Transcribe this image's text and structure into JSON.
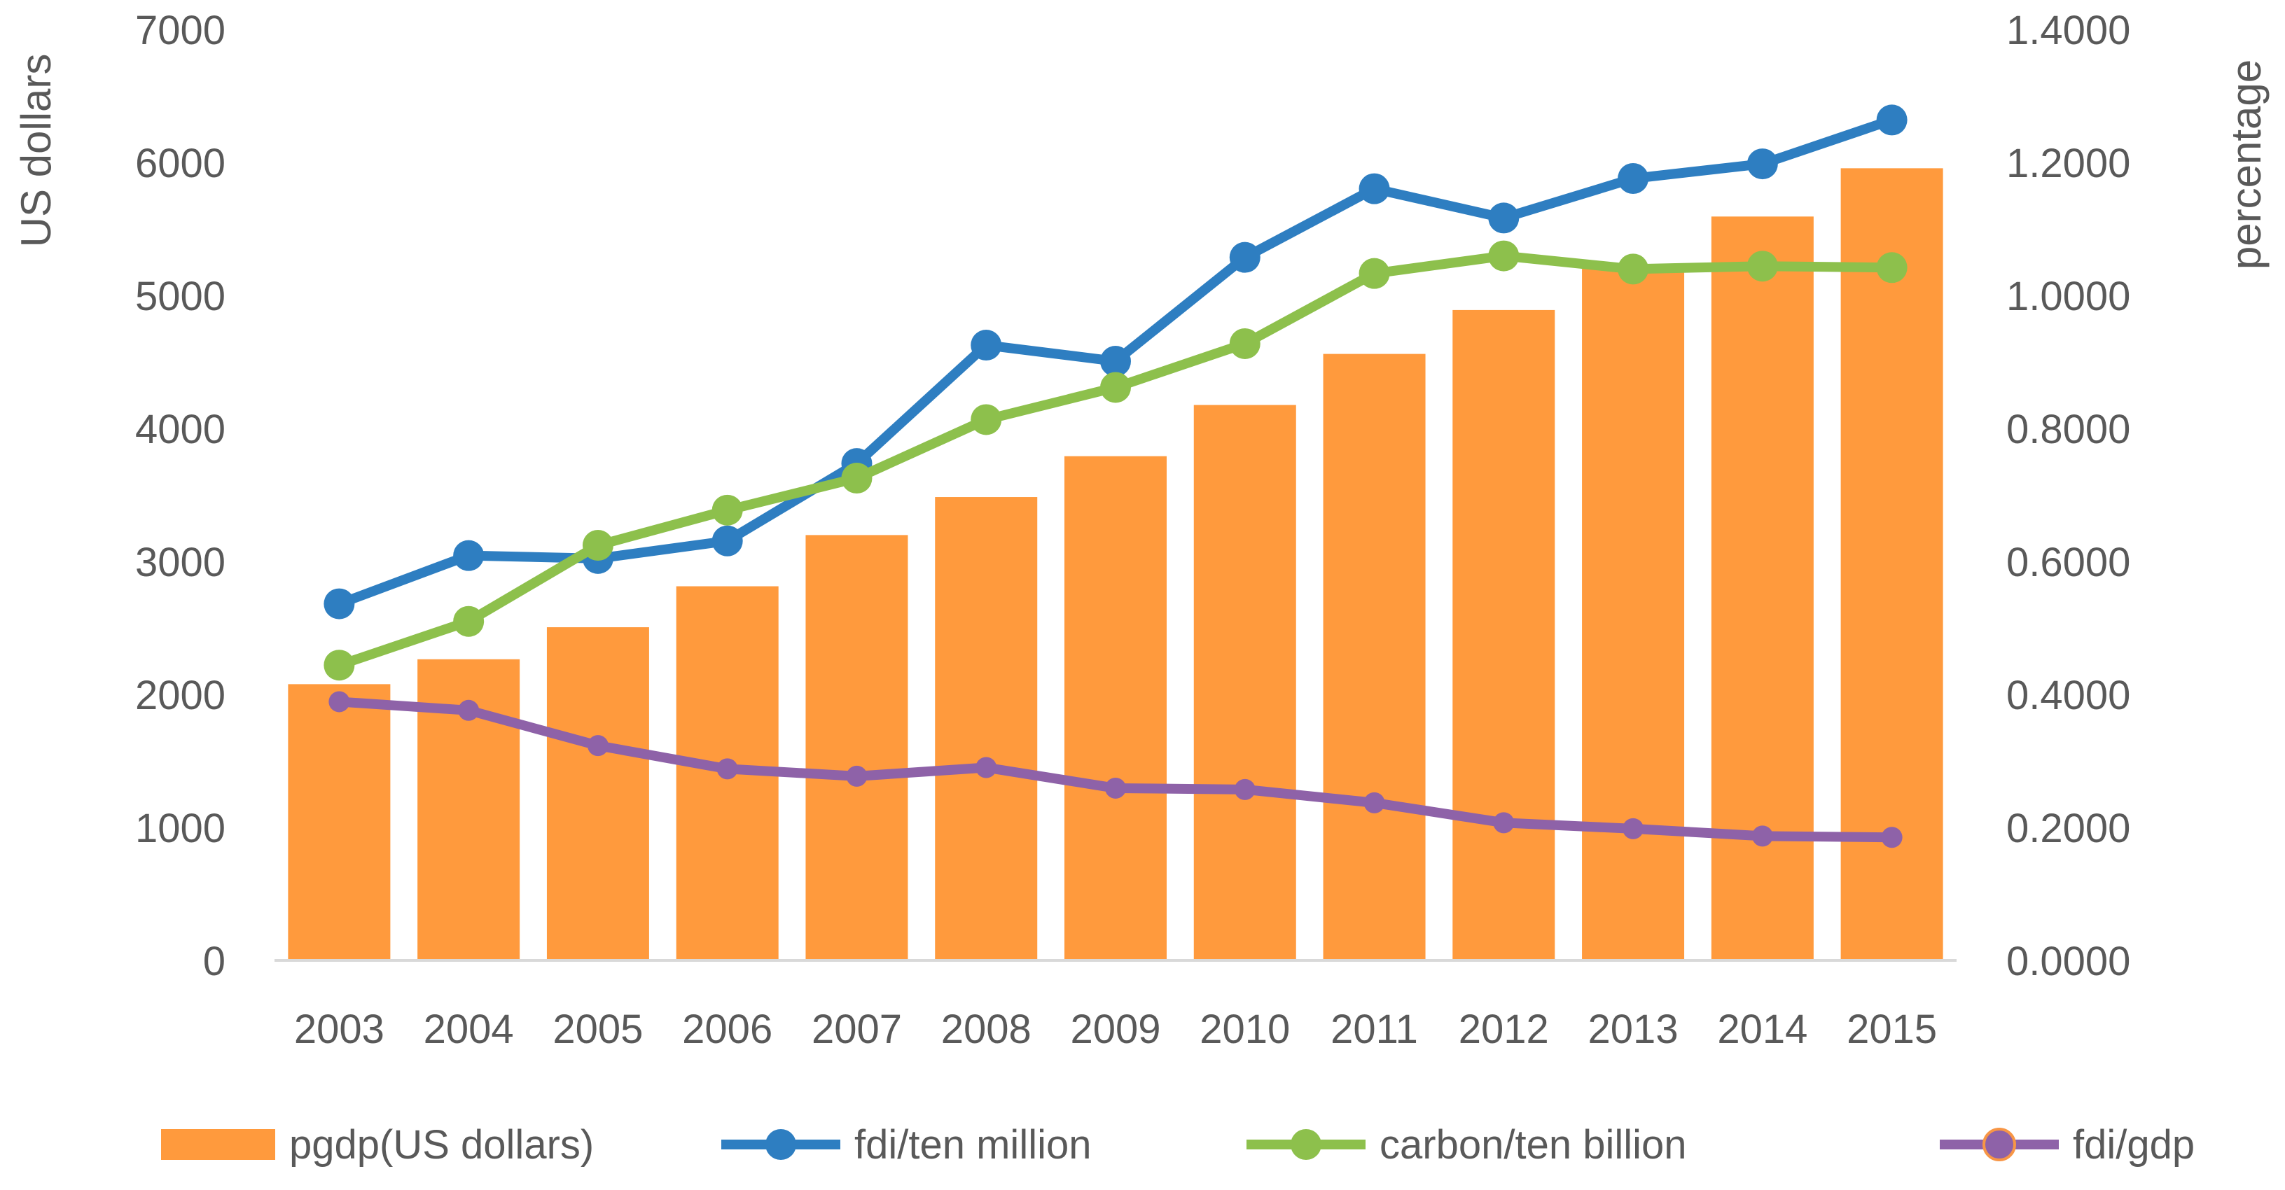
{
  "chart_data": {
    "type": "bar+line",
    "title": "",
    "categories": [
      "2003",
      "2004",
      "2005",
      "2006",
      "2007",
      "2008",
      "2009",
      "2010",
      "2011",
      "2012",
      "2013",
      "2014",
      "2015"
    ],
    "ylabel_left": "US dollars",
    "ylabel_right": "percentage",
    "ylim_left": [
      0,
      7000
    ],
    "ylim_right": [
      0,
      1.4
    ],
    "yticks_left": [
      "0",
      "1000",
      "2000",
      "3000",
      "4000",
      "5000",
      "6000",
      "7000"
    ],
    "yticks_right": [
      "0.0000",
      "0.2000",
      "0.4000",
      "0.6000",
      "0.8000",
      "1.0000",
      "1.2000",
      "1.4000"
    ],
    "grid": false,
    "legend_position": "bottom",
    "series": [
      {
        "name": "pgdp(US dollars)",
        "type": "bar",
        "axis": "left",
        "color": "#FF9A3D",
        "values": [
          2077,
          2264,
          2505,
          2813,
          3198,
          3484,
          3791,
          4176,
          4560,
          4890,
          5220,
          5593,
          5956
        ]
      },
      {
        "name": "fdi/ten million",
        "type": "line",
        "axis": "left",
        "color": "#2E7EC1",
        "values": [
          2681,
          3044,
          3022,
          3154,
          3736,
          4626,
          4505,
          5286,
          5802,
          5582,
          5879,
          5989,
          6319
        ]
      },
      {
        "name": "carbon/ten billion",
        "type": "line",
        "axis": "left",
        "color": "#8DC04C",
        "values": [
          2220,
          2549,
          3121,
          3385,
          3626,
          4066,
          4308,
          4637,
          5165,
          5297,
          5198,
          5220,
          5209
        ]
      },
      {
        "name": "fdi/gdp",
        "type": "line",
        "axis": "right",
        "color": "#8E62A8",
        "values": [
          0.389,
          0.376,
          0.323,
          0.288,
          0.277,
          0.29,
          0.259,
          0.257,
          0.237,
          0.207,
          0.198,
          0.187,
          0.185
        ]
      }
    ]
  }
}
